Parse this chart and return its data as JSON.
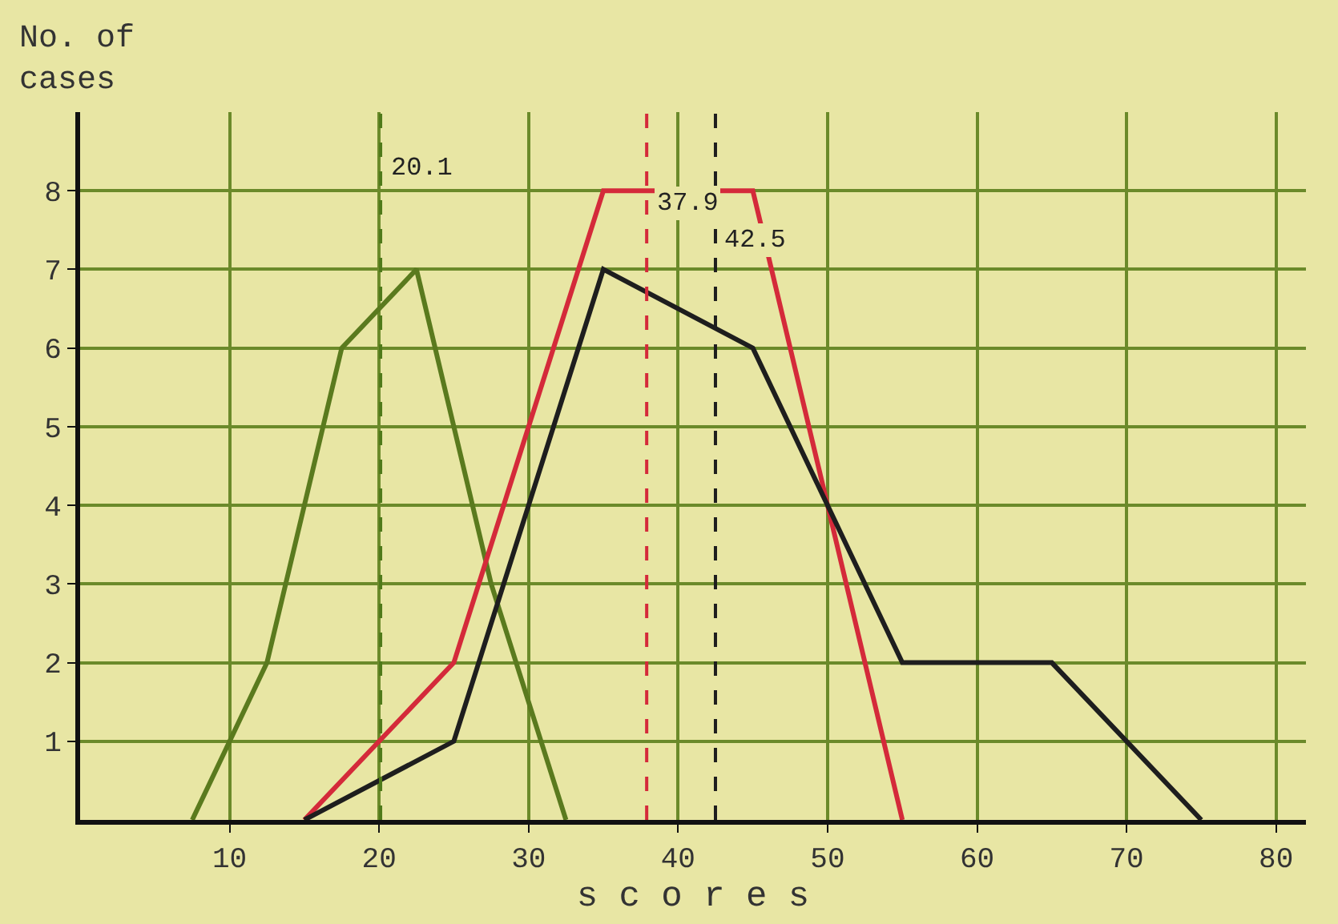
{
  "chart_data": {
    "type": "line",
    "xlabel": "s c o r e s",
    "ylabel": "No. of cases",
    "xlim": [
      0,
      82
    ],
    "ylim": [
      0,
      9
    ],
    "xticks": [
      10,
      20,
      30,
      40,
      50,
      60,
      70,
      80
    ],
    "yticks": [
      1,
      2,
      3,
      4,
      5,
      6,
      7,
      8
    ],
    "grid": true,
    "marker": "none",
    "line_style": "solid",
    "series": [
      {
        "color": "#5a7a1e",
        "x": [
          7.5,
          12.5,
          17.5,
          22.5,
          27.5,
          32.5
        ],
        "values": [
          0,
          2,
          6,
          7,
          3,
          0
        ]
      },
      {
        "color": "#d42a3a",
        "x": [
          15,
          25,
          35,
          45,
          55
        ],
        "values": [
          0,
          2,
          8,
          8,
          0
        ]
      },
      {
        "color": "#1e1e1e",
        "x": [
          15,
          25,
          35,
          45,
          55,
          65,
          75
        ],
        "values": [
          0,
          1,
          7,
          6,
          2,
          2,
          0
        ]
      }
    ],
    "ref_lines": [
      {
        "axis": "x",
        "value": 20.1,
        "label": "20.1",
        "color": "#4f7a1a",
        "line_style": "dashed"
      },
      {
        "axis": "x",
        "value": 37.9,
        "label": "37.9",
        "color": "#d42a3a",
        "line_style": "dashed"
      },
      {
        "axis": "x",
        "value": 42.5,
        "label": "42.5",
        "color": "#1e1e1e",
        "line_style": "dashed"
      }
    ]
  }
}
